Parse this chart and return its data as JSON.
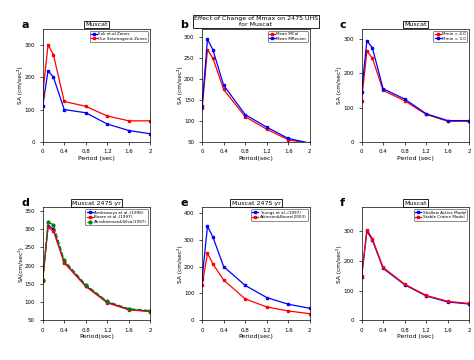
{
  "panels": {
    "a": {
      "title": "Muscat",
      "xlabel": "Period (sec)",
      "ylabel": "SA (cm/sec²)",
      "xlim": [
        0,
        2
      ],
      "ylim": [
        0,
        350
      ],
      "yticks": [
        0,
        100,
        200,
        300
      ],
      "series": [
        {
          "label": "Exk et.al Zones",
          "color": "blue",
          "x": [
            0.0,
            0.1,
            0.2,
            0.4,
            0.8,
            1.2,
            1.6,
            2.0
          ],
          "y": [
            110,
            220,
            200,
            100,
            90,
            55,
            35,
            25
          ]
        },
        {
          "label": "Our Seismogenic Zones",
          "color": "red",
          "x": [
            0.0,
            0.1,
            0.2,
            0.4,
            0.8,
            1.2,
            1.6,
            2.0
          ],
          "y": [
            145,
            300,
            270,
            125,
            110,
            80,
            65,
            65
          ]
        }
      ]
    },
    "b": {
      "title": "Effect of Change of Mmax on 2475 UHS\nfor Muscat",
      "xlabel": "Period(sec)",
      "ylabel": "SA (cm/sec²)",
      "xlim": [
        0,
        2
      ],
      "ylim": [
        50,
        320
      ],
      "yticks": [
        50,
        100,
        150,
        200,
        250,
        300
      ],
      "series": [
        {
          "label": "Mean MCal",
          "color": "red",
          "x": [
            0.0,
            0.1,
            0.2,
            0.4,
            0.8,
            1.2,
            1.6,
            2.0
          ],
          "y": [
            130,
            270,
            250,
            175,
            110,
            80,
            55,
            45
          ]
        },
        {
          "label": "Mean MRecom",
          "color": "blue",
          "x": [
            0.0,
            0.1,
            0.2,
            0.4,
            0.8,
            1.2,
            1.6,
            2.0
          ],
          "y": [
            135,
            295,
            270,
            185,
            115,
            85,
            58,
            47
          ]
        }
      ]
    },
    "c": {
      "title": "Muscat",
      "xlabel": "Period (sec)",
      "ylabel": "SA (cm/sec²)",
      "xlim": [
        0,
        2
      ],
      "ylim": [
        0,
        330
      ],
      "yticks": [
        0,
        100,
        200,
        300
      ],
      "series": [
        {
          "label": "Mmin = 4.0",
          "color": "red",
          "x": [
            0.0,
            0.1,
            0.2,
            0.4,
            0.8,
            1.2,
            1.6,
            2.0
          ],
          "y": [
            120,
            265,
            245,
            150,
            120,
            80,
            60,
            60
          ]
        },
        {
          "label": "Mmin = 3.0",
          "color": "blue",
          "x": [
            0.0,
            0.1,
            0.2,
            0.4,
            0.8,
            1.2,
            1.6,
            2.0
          ],
          "y": [
            145,
            295,
            275,
            155,
            125,
            82,
            62,
            62
          ]
        }
      ]
    },
    "d": {
      "title": "Muscat 2475 yr",
      "xlabel": "Period(sec)",
      "ylabel": "SA(cm/sec²)",
      "xlim": [
        0,
        2
      ],
      "ylim": [
        50,
        360
      ],
      "yticks": [
        50,
        100,
        150,
        200,
        250,
        300,
        350
      ],
      "series": [
        {
          "label": "Ambraseys et al.,(1996)",
          "color": "blue",
          "linestyle": "-",
          "x": [
            0.0,
            0.1,
            0.2,
            0.4,
            0.8,
            1.2,
            1.6,
            2.0
          ],
          "y": [
            160,
            310,
            300,
            210,
            145,
            100,
            80,
            75
          ]
        },
        {
          "label": "Boore et al.,(1997)",
          "color": "red",
          "linestyle": "-",
          "x": [
            0.0,
            0.1,
            0.2,
            0.4,
            0.8,
            1.2,
            1.6,
            2.0
          ],
          "y": [
            158,
            305,
            295,
            208,
            143,
            98,
            79,
            74
          ]
        },
        {
          "label": "Abrahamson&Silva(1997)",
          "color": "green",
          "linestyle": "--",
          "x": [
            0.0,
            0.1,
            0.2,
            0.4,
            0.8,
            1.2,
            1.6,
            2.0
          ],
          "y": [
            162,
            320,
            312,
            215,
            148,
            102,
            82,
            77
          ]
        }
      ]
    },
    "e": {
      "title": "Muscat 2475 yr",
      "xlabel": "Period(sec)",
      "ylabel": "SA (cm/sec²)",
      "xlim": [
        0,
        2
      ],
      "ylim": [
        0,
        420
      ],
      "yticks": [
        0,
        100,
        200,
        300,
        400
      ],
      "series": [
        {
          "label": "Youngs et al.,(1997)",
          "color": "blue",
          "linestyle": "-",
          "x": [
            0.0,
            0.1,
            0.2,
            0.4,
            0.8,
            1.2,
            1.6,
            2.0
          ],
          "y": [
            155,
            350,
            310,
            200,
            130,
            85,
            60,
            45
          ]
        },
        {
          "label": "Atkinson&Boore(2003)",
          "color": "red",
          "linestyle": "-",
          "x": [
            0.0,
            0.1,
            0.2,
            0.4,
            0.8,
            1.2,
            1.6,
            2.0
          ],
          "y": [
            130,
            250,
            210,
            150,
            80,
            50,
            35,
            25
          ]
        }
      ]
    },
    "f": {
      "title": "Muscat",
      "xlabel": "Period (sec)",
      "ylabel": "SA (cm/sec²)",
      "xlim": [
        0,
        2
      ],
      "ylim": [
        0,
        380
      ],
      "yticks": [
        0,
        100,
        200,
        300
      ],
      "series": [
        {
          "label": "Shallow Active Model",
          "color": "blue",
          "linestyle": "-",
          "x": [
            0.0,
            0.1,
            0.2,
            0.4,
            0.8,
            1.2,
            1.6,
            2.0
          ],
          "y": [
            145,
            300,
            270,
            175,
            120,
            82,
            62,
            55
          ]
        },
        {
          "label": "Stable Craton Model",
          "color": "red",
          "linestyle": "-",
          "x": [
            0.0,
            0.1,
            0.2,
            0.4,
            0.8,
            1.2,
            1.6,
            2.0
          ],
          "y": [
            148,
            305,
            275,
            178,
            122,
            84,
            64,
            57
          ]
        }
      ]
    }
  }
}
